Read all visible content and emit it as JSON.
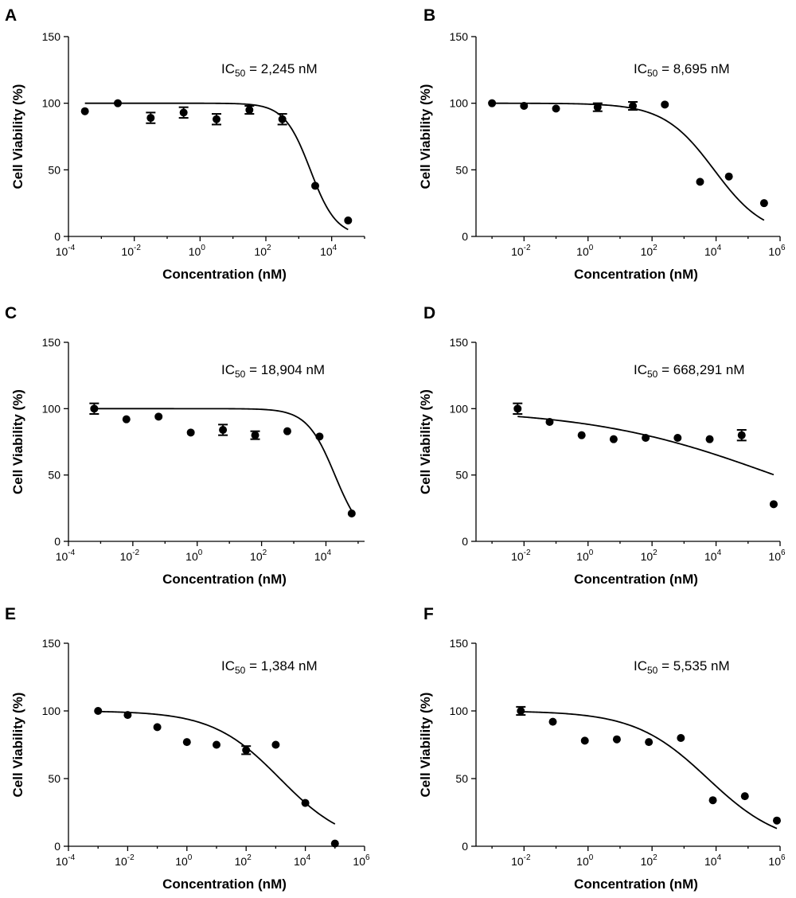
{
  "chart_data": [
    {
      "type": "scatter",
      "panel": "A",
      "ic50_label": "IC",
      "ic50_sub": "50",
      "ic50_value": " = 2,245 nM",
      "xlabel": "Concentration (nM)",
      "ylabel": "Cell Viability (%)",
      "xscale": "log10",
      "xlim_exp": [
        -4,
        5
      ],
      "x_tick_exps": [
        -4,
        -2,
        0,
        2,
        4
      ],
      "ylim": [
        0,
        150
      ],
      "y_ticks": [
        0,
        50,
        100,
        150
      ],
      "points": [
        {
          "log_x": -3.5,
          "y": 94,
          "err": 0
        },
        {
          "log_x": -2.5,
          "y": 100,
          "err": 0
        },
        {
          "log_x": -1.5,
          "y": 89,
          "err": 4
        },
        {
          "log_x": -0.5,
          "y": 93,
          "err": 4
        },
        {
          "log_x": 0.5,
          "y": 88,
          "err": 4
        },
        {
          "log_x": 1.5,
          "y": 95,
          "err": 3
        },
        {
          "log_x": 2.5,
          "y": 88,
          "err": 4
        },
        {
          "log_x": 3.5,
          "y": 38,
          "err": 0
        },
        {
          "log_x": 4.5,
          "y": 12,
          "err": 0
        }
      ],
      "curve": {
        "top": 100,
        "bottom": 0,
        "log_ic50": 3.351,
        "hill": 1.1,
        "log_x_range": [
          -3.5,
          4.5
        ]
      }
    },
    {
      "type": "scatter",
      "panel": "B",
      "ic50_label": "IC",
      "ic50_sub": "50",
      "ic50_value": " = 8,695 nM",
      "xlabel": "Concentration (nM)",
      "ylabel": "Cell Viability (%)",
      "xscale": "log10",
      "xlim_exp": [
        -3.5,
        6
      ],
      "x_tick_exps": [
        -2,
        0,
        2,
        4,
        6
      ],
      "ylim": [
        0,
        150
      ],
      "y_ticks": [
        0,
        50,
        100,
        150
      ],
      "points": [
        {
          "log_x": -3.0,
          "y": 100,
          "err": 0
        },
        {
          "log_x": -2.0,
          "y": 98,
          "err": 0
        },
        {
          "log_x": -1.0,
          "y": 96,
          "err": 0
        },
        {
          "log_x": 0.3,
          "y": 97,
          "err": 3
        },
        {
          "log_x": 1.4,
          "y": 98,
          "err": 3
        },
        {
          "log_x": 2.4,
          "y": 99,
          "err": 0
        },
        {
          "log_x": 3.5,
          "y": 41,
          "err": 0
        },
        {
          "log_x": 4.4,
          "y": 45,
          "err": 0
        },
        {
          "log_x": 5.5,
          "y": 25,
          "err": 0
        }
      ],
      "curve": {
        "top": 100,
        "bottom": 0,
        "log_ic50": 3.939,
        "hill": 0.55,
        "log_x_range": [
          -3.0,
          5.5
        ]
      }
    },
    {
      "type": "scatter",
      "panel": "C",
      "ic50_label": "IC",
      "ic50_sub": "50",
      "ic50_value": " = 18,904 nM",
      "xlabel": "Concentration (nM)",
      "ylabel": "Cell Viability (%)",
      "xscale": "log10",
      "xlim_exp": [
        -4,
        5.2
      ],
      "x_tick_exps": [
        -4,
        -2,
        0,
        2,
        4
      ],
      "ylim": [
        0,
        150
      ],
      "y_ticks": [
        0,
        50,
        100,
        150
      ],
      "points": [
        {
          "log_x": -3.2,
          "y": 100,
          "err": 4
        },
        {
          "log_x": -2.2,
          "y": 92,
          "err": 0
        },
        {
          "log_x": -1.2,
          "y": 94,
          "err": 0
        },
        {
          "log_x": -0.2,
          "y": 82,
          "err": 0
        },
        {
          "log_x": 0.8,
          "y": 84,
          "err": 4
        },
        {
          "log_x": 1.8,
          "y": 80,
          "err": 3
        },
        {
          "log_x": 2.8,
          "y": 83,
          "err": 0
        },
        {
          "log_x": 3.8,
          "y": 79,
          "err": 0
        },
        {
          "log_x": 4.8,
          "y": 21,
          "err": 0
        }
      ],
      "curve": {
        "top": 100,
        "bottom": 0,
        "log_ic50": 4.277,
        "hill": 1.0,
        "log_x_range": [
          -3.2,
          4.8
        ]
      }
    },
    {
      "type": "scatter",
      "panel": "D",
      "ic50_label": "IC",
      "ic50_sub": "50",
      "ic50_value": " = 668,291 nM",
      "xlabel": "Concentration (nM)",
      "ylabel": "Cell Viability (%)",
      "xscale": "log10",
      "xlim_exp": [
        -3.5,
        6
      ],
      "x_tick_exps": [
        -2,
        0,
        2,
        4,
        6
      ],
      "ylim": [
        0,
        150
      ],
      "y_ticks": [
        0,
        50,
        100,
        150
      ],
      "points": [
        {
          "log_x": -2.2,
          "y": 100,
          "err": 4
        },
        {
          "log_x": -1.2,
          "y": 90,
          "err": 0
        },
        {
          "log_x": -0.2,
          "y": 80,
          "err": 0
        },
        {
          "log_x": 0.8,
          "y": 77,
          "err": 0
        },
        {
          "log_x": 1.8,
          "y": 78,
          "err": 0
        },
        {
          "log_x": 2.8,
          "y": 78,
          "err": 0
        },
        {
          "log_x": 3.8,
          "y": 77,
          "err": 0
        },
        {
          "log_x": 4.8,
          "y": 80,
          "err": 4
        },
        {
          "log_x": 5.8,
          "y": 28,
          "err": 0
        }
      ],
      "curve": {
        "top": 100,
        "bottom": 0,
        "log_ic50": 5.825,
        "hill": 0.15,
        "log_x_range": [
          -2.2,
          5.8
        ]
      }
    },
    {
      "type": "scatter",
      "panel": "E",
      "ic50_label": "IC",
      "ic50_sub": "50",
      "ic50_value": " = 1,384 nM",
      "xlabel": "Concentration (nM)",
      "ylabel": "Cell Viability (%)",
      "xscale": "log10",
      "xlim_exp": [
        -4,
        6
      ],
      "x_tick_exps": [
        -4,
        -2,
        0,
        2,
        4,
        6
      ],
      "ylim": [
        0,
        150
      ],
      "y_ticks": [
        0,
        50,
        100,
        150
      ],
      "points": [
        {
          "log_x": -3.0,
          "y": 100,
          "err": 0
        },
        {
          "log_x": -2.0,
          "y": 97,
          "err": 0
        },
        {
          "log_x": -1.0,
          "y": 88,
          "err": 0
        },
        {
          "log_x": 0.0,
          "y": 77,
          "err": 0
        },
        {
          "log_x": 1.0,
          "y": 75,
          "err": 0
        },
        {
          "log_x": 2.0,
          "y": 71,
          "err": 3
        },
        {
          "log_x": 3.0,
          "y": 75,
          "err": 0
        },
        {
          "log_x": 4.0,
          "y": 32,
          "err": 0
        },
        {
          "log_x": 5.0,
          "y": 2,
          "err": 0
        }
      ],
      "curve": {
        "top": 100,
        "bottom": 0,
        "log_ic50": 3.141,
        "hill": 0.38,
        "log_x_range": [
          -3.0,
          5.0
        ]
      }
    },
    {
      "type": "scatter",
      "panel": "F",
      "ic50_label": "IC",
      "ic50_sub": "50",
      "ic50_value": " = 5,535 nM",
      "xlabel": "Concentration (nM)",
      "ylabel": "Cell Viability (%)",
      "xscale": "log10",
      "xlim_exp": [
        -3.5,
        6
      ],
      "x_tick_exps": [
        -2,
        0,
        2,
        4,
        6
      ],
      "ylim": [
        0,
        150
      ],
      "y_ticks": [
        0,
        50,
        100,
        150
      ],
      "points": [
        {
          "log_x": -2.1,
          "y": 100,
          "err": 3
        },
        {
          "log_x": -1.1,
          "y": 92,
          "err": 0
        },
        {
          "log_x": -0.1,
          "y": 78,
          "err": 0
        },
        {
          "log_x": 0.9,
          "y": 79,
          "err": 0
        },
        {
          "log_x": 1.9,
          "y": 77,
          "err": 0
        },
        {
          "log_x": 2.9,
          "y": 80,
          "err": 0
        },
        {
          "log_x": 3.9,
          "y": 34,
          "err": 0
        },
        {
          "log_x": 4.9,
          "y": 37,
          "err": 0
        },
        {
          "log_x": 5.9,
          "y": 19,
          "err": 0
        }
      ],
      "curve": {
        "top": 100,
        "bottom": 0,
        "log_ic50": 3.743,
        "hill": 0.38,
        "log_x_range": [
          -2.1,
          5.9
        ]
      }
    }
  ]
}
